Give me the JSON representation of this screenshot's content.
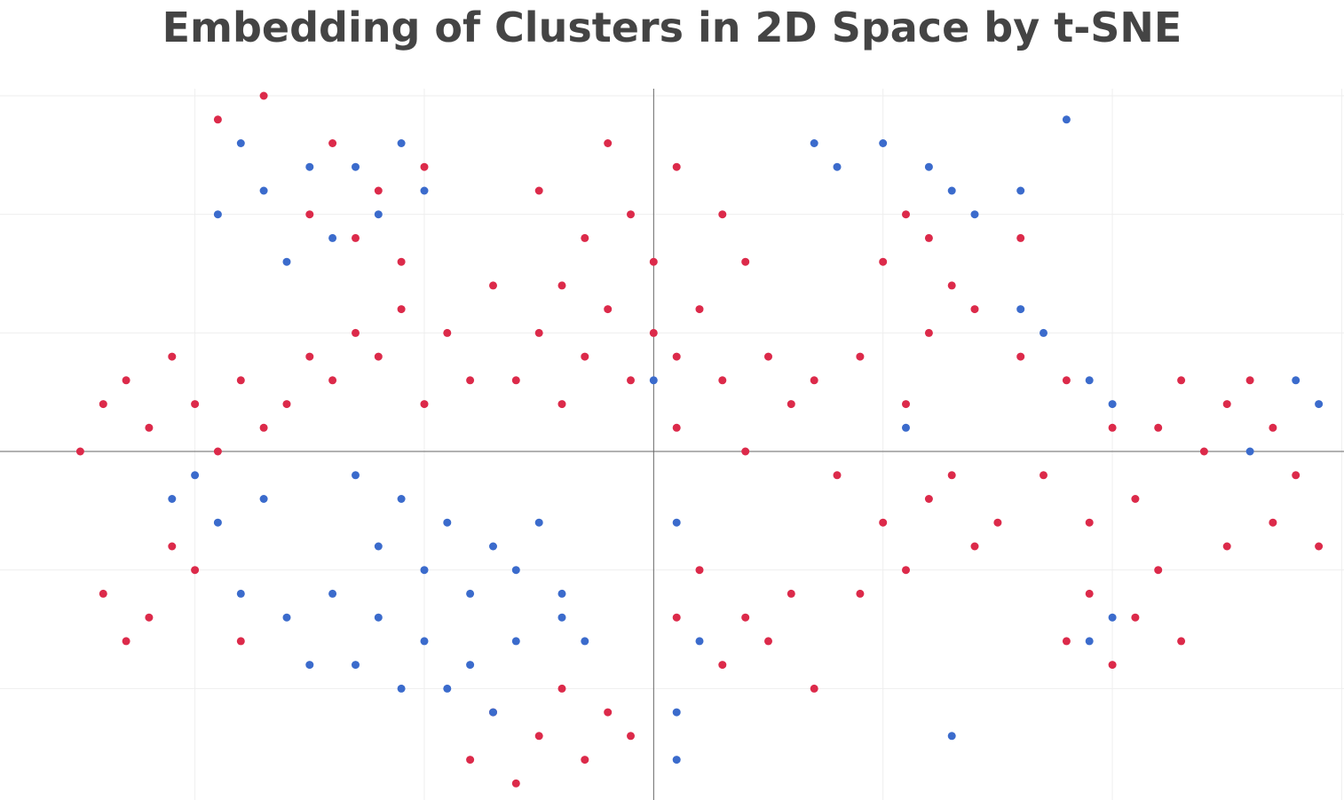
{
  "chart_data": {
    "type": "scatter",
    "title": "Embedding of Clusters in 2D Space by t-SNE",
    "xlabel": "",
    "ylabel": "",
    "xlim": [
      -28.5,
      30.1
    ],
    "ylim": [
      -14.7,
      15.3
    ],
    "grid": true,
    "legend": "none",
    "series": [
      {
        "color": "#dc2a4a",
        "points": [
          [
            -19,
            14
          ],
          [
            -17,
            15
          ],
          [
            -14,
            13
          ],
          [
            -12,
            11
          ],
          [
            -10,
            12
          ],
          [
            -13,
            9
          ],
          [
            -11,
            8
          ],
          [
            -15,
            10
          ],
          [
            -20,
            2
          ],
          [
            -22,
            1
          ],
          [
            -18,
            3
          ],
          [
            -24,
            2
          ],
          [
            -17,
            1
          ],
          [
            -21,
            4
          ],
          [
            -19,
            0
          ],
          [
            -25,
            0
          ],
          [
            -23,
            3
          ],
          [
            -16,
            2
          ],
          [
            -14,
            3
          ],
          [
            -12,
            4
          ],
          [
            -10,
            2
          ],
          [
            -9,
            5
          ],
          [
            -11,
            6
          ],
          [
            -13,
            5
          ],
          [
            -8,
            3
          ],
          [
            -15,
            4
          ],
          [
            -20,
            -5
          ],
          [
            -22,
            -7
          ],
          [
            -24,
            -6
          ],
          [
            -18,
            -8
          ],
          [
            -21,
            -4
          ],
          [
            -23,
            -8
          ],
          [
            -7,
            -11
          ],
          [
            -5,
            -12
          ],
          [
            -3,
            -13
          ],
          [
            -1,
            -12
          ],
          [
            -6,
            -14
          ],
          [
            -4,
            -10
          ],
          [
            -8,
            -13
          ],
          [
            -2,
            -11
          ],
          [
            1,
            12
          ],
          [
            3,
            10
          ],
          [
            4,
            8
          ],
          [
            2,
            6
          ],
          [
            5,
            4
          ],
          [
            3,
            3
          ],
          [
            6,
            2
          ],
          [
            1,
            1
          ],
          [
            7,
            3
          ],
          [
            4,
            0
          ],
          [
            8,
            -1
          ],
          [
            10,
            -3
          ],
          [
            12,
            -2
          ],
          [
            14,
            -4
          ],
          [
            11,
            -5
          ],
          [
            13,
            -1
          ],
          [
            9,
            -6
          ],
          [
            15,
            -3
          ],
          [
            2,
            -5
          ],
          [
            4,
            -7
          ],
          [
            6,
            -6
          ],
          [
            3,
            -9
          ],
          [
            5,
            -8
          ],
          [
            7,
            -10
          ],
          [
            1,
            -7
          ],
          [
            16,
            4
          ],
          [
            18,
            3
          ],
          [
            20,
            1
          ],
          [
            17,
            -1
          ],
          [
            19,
            -3
          ],
          [
            21,
            -2
          ],
          [
            22,
            1
          ],
          [
            23,
            3
          ],
          [
            25,
            2
          ],
          [
            26,
            3
          ],
          [
            27,
            1
          ],
          [
            28,
            -1
          ],
          [
            27,
            -3
          ],
          [
            25,
            -4
          ],
          [
            29,
            -4
          ],
          [
            24,
            0
          ],
          [
            19,
            -6
          ],
          [
            21,
            -7
          ],
          [
            22,
            -5
          ],
          [
            18,
            -8
          ],
          [
            20,
            -9
          ],
          [
            23,
            -8
          ],
          [
            -4,
            2
          ],
          [
            -3,
            4
          ],
          [
            -5,
            5
          ],
          [
            -2,
            6
          ],
          [
            -6,
            3
          ],
          [
            -1,
            3
          ],
          [
            0,
            5
          ],
          [
            -7,
            7
          ],
          [
            -3,
            9
          ],
          [
            -1,
            10
          ],
          [
            0,
            8
          ],
          [
            -5,
            11
          ],
          [
            -2,
            13
          ],
          [
            -4,
            7
          ],
          [
            1,
            4
          ],
          [
            10,
            8
          ],
          [
            11,
            10
          ],
          [
            12,
            9
          ],
          [
            13,
            7
          ],
          [
            14,
            6
          ],
          [
            16,
            9
          ],
          [
            12,
            5
          ],
          [
            9,
            4
          ],
          [
            11,
            2
          ]
        ]
      },
      {
        "color": "#3b6bcc",
        "points": [
          [
            -19,
            10
          ],
          [
            -17,
            11
          ],
          [
            -15,
            12
          ],
          [
            -14,
            9
          ],
          [
            -16,
            8
          ],
          [
            -18,
            13
          ],
          [
            -13,
            12
          ],
          [
            -12,
            10
          ],
          [
            -10,
            11
          ],
          [
            -11,
            13
          ],
          [
            -20,
            -1
          ],
          [
            -19,
            -3
          ],
          [
            -21,
            -2
          ],
          [
            -17,
            -2
          ],
          [
            -13,
            -1
          ],
          [
            -11,
            -2
          ],
          [
            -9,
            -3
          ],
          [
            -7,
            -4
          ],
          [
            -10,
            -5
          ],
          [
            -8,
            -6
          ],
          [
            -12,
            -4
          ],
          [
            -6,
            -5
          ],
          [
            -5,
            -3
          ],
          [
            -4,
            -6
          ],
          [
            -14,
            -6
          ],
          [
            -12,
            -7
          ],
          [
            -10,
            -8
          ],
          [
            -8,
            -9
          ],
          [
            -6,
            -8
          ],
          [
            -4,
            -7
          ],
          [
            -9,
            -10
          ],
          [
            -11,
            -10
          ],
          [
            -7,
            -11
          ],
          [
            -13,
            -9
          ],
          [
            -3,
            -8
          ],
          [
            -16,
            -7
          ],
          [
            -18,
            -6
          ],
          [
            -15,
            -9
          ],
          [
            1,
            -11
          ],
          [
            2,
            -8
          ],
          [
            1,
            -3
          ],
          [
            0,
            3
          ],
          [
            7,
            13
          ],
          [
            8,
            12
          ],
          [
            10,
            13
          ],
          [
            12,
            12
          ],
          [
            13,
            11
          ],
          [
            16,
            11
          ],
          [
            14,
            10
          ],
          [
            18,
            14
          ],
          [
            16,
            6
          ],
          [
            17,
            5
          ],
          [
            19,
            3
          ],
          [
            20,
            2
          ],
          [
            11,
            1
          ],
          [
            29,
            2
          ],
          [
            28,
            3
          ],
          [
            26,
            0
          ],
          [
            19,
            -8
          ],
          [
            20,
            -7
          ],
          [
            13,
            -12
          ],
          [
            1,
            -13
          ]
        ]
      }
    ]
  }
}
